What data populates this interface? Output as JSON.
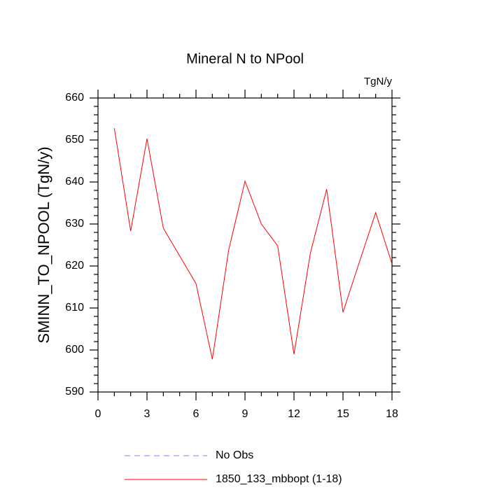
{
  "chart_data": {
    "type": "line",
    "title": "Mineral N to NPool",
    "units": "TgN/y",
    "y_label": "SMINN_TO_NPOOL  (TgN/y)",
    "x": [
      1,
      2,
      3,
      4,
      5,
      6,
      7,
      8,
      9,
      10,
      11,
      12,
      13,
      14,
      15,
      16,
      17,
      18
    ],
    "series": [
      {
        "name": "No Obs",
        "color": "#8080ff",
        "dashed": true,
        "values": [
          null,
          null,
          null,
          null,
          null,
          null,
          null,
          null,
          null,
          null,
          null,
          null,
          null,
          null,
          null,
          null,
          null,
          null
        ]
      },
      {
        "name": "1850_133_mbbopt (1-18)",
        "color": "#ff0000",
        "dashed": false,
        "values": [
          652.8,
          628.3,
          650.3,
          629,
          622.4,
          615.8,
          597.8,
          623.8,
          640.2,
          630,
          624.8,
          599,
          623,
          638.3,
          609,
          620.9,
          632.7,
          620.5
        ]
      }
    ],
    "xlim": [
      0,
      18
    ],
    "xticks": [
      0,
      3,
      6,
      9,
      12,
      15,
      18
    ],
    "minor_xticks": [
      1,
      2,
      4,
      5,
      7,
      8,
      10,
      11,
      13,
      14,
      16,
      17
    ],
    "ylim": [
      590,
      660
    ],
    "yticks": [
      590,
      600,
      610,
      620,
      630,
      640,
      650,
      660
    ],
    "minor_yticks": [
      592,
      594,
      596,
      598,
      602,
      604,
      606,
      608,
      612,
      614,
      616,
      618,
      622,
      624,
      626,
      628,
      632,
      634,
      636,
      638,
      642,
      644,
      646,
      648,
      652,
      654,
      656,
      658
    ],
    "grid": false
  }
}
